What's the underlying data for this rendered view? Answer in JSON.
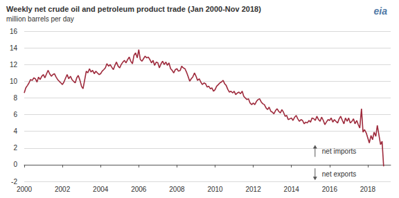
{
  "chart_data": {
    "type": "line",
    "title": "Weekly net crude oil and petroleum product trade (Jan 2000-Nov 2018)",
    "subtitle": "million barrels per day",
    "logo": "eia",
    "color": "#9e2a3c",
    "grid": true,
    "xlim": [
      2000,
      2019.2
    ],
    "xticks": [
      2000,
      2002,
      2004,
      2006,
      2008,
      2010,
      2012,
      2014,
      2016,
      2018
    ],
    "ylim": [
      -2,
      16
    ],
    "yticks": [
      -2,
      0,
      2,
      4,
      6,
      8,
      10,
      12,
      14,
      16
    ],
    "annotations": [
      {
        "text": "net imports",
        "x": 2015.6,
        "y": 1.6
      },
      {
        "text": "net exports",
        "x": 2015.6,
        "y": -1.1
      }
    ],
    "x": [
      2000.0,
      2000.08,
      2000.17,
      2000.25,
      2000.33,
      2000.42,
      2000.5,
      2000.58,
      2000.67,
      2000.75,
      2000.83,
      2000.92,
      2001.0,
      2001.08,
      2001.17,
      2001.25,
      2001.33,
      2001.42,
      2001.5,
      2001.58,
      2001.67,
      2001.75,
      2001.83,
      2001.92,
      2002.0,
      2002.08,
      2002.17,
      2002.25,
      2002.33,
      2002.42,
      2002.5,
      2002.58,
      2002.67,
      2002.75,
      2002.83,
      2002.92,
      2003.0,
      2003.08,
      2003.17,
      2003.25,
      2003.33,
      2003.42,
      2003.5,
      2003.58,
      2003.67,
      2003.75,
      2003.83,
      2003.92,
      2004.0,
      2004.08,
      2004.17,
      2004.25,
      2004.33,
      2004.42,
      2004.5,
      2004.58,
      2004.67,
      2004.75,
      2004.83,
      2004.92,
      2005.0,
      2005.08,
      2005.17,
      2005.25,
      2005.33,
      2005.42,
      2005.5,
      2005.58,
      2005.67,
      2005.75,
      2005.83,
      2005.92,
      2006.0,
      2006.08,
      2006.17,
      2006.25,
      2006.33,
      2006.42,
      2006.5,
      2006.58,
      2006.67,
      2006.75,
      2006.83,
      2006.92,
      2007.0,
      2007.08,
      2007.17,
      2007.25,
      2007.33,
      2007.42,
      2007.5,
      2007.58,
      2007.67,
      2007.75,
      2007.83,
      2007.92,
      2008.0,
      2008.08,
      2008.17,
      2008.25,
      2008.33,
      2008.42,
      2008.5,
      2008.58,
      2008.67,
      2008.75,
      2008.83,
      2008.92,
      2009.0,
      2009.08,
      2009.17,
      2009.25,
      2009.33,
      2009.42,
      2009.5,
      2009.58,
      2009.67,
      2009.75,
      2009.83,
      2009.92,
      2010.0,
      2010.08,
      2010.17,
      2010.25,
      2010.33,
      2010.42,
      2010.5,
      2010.58,
      2010.67,
      2010.75,
      2010.83,
      2010.92,
      2011.0,
      2011.08,
      2011.17,
      2011.25,
      2011.33,
      2011.42,
      2011.5,
      2011.58,
      2011.67,
      2011.75,
      2011.83,
      2011.92,
      2012.0,
      2012.08,
      2012.17,
      2012.25,
      2012.33,
      2012.42,
      2012.5,
      2012.58,
      2012.67,
      2012.75,
      2012.83,
      2012.92,
      2013.0,
      2013.08,
      2013.17,
      2013.25,
      2013.33,
      2013.42,
      2013.5,
      2013.58,
      2013.67,
      2013.75,
      2013.83,
      2013.92,
      2014.0,
      2014.08,
      2014.17,
      2014.25,
      2014.33,
      2014.42,
      2014.5,
      2014.58,
      2014.67,
      2014.75,
      2014.83,
      2014.92,
      2015.0,
      2015.08,
      2015.17,
      2015.25,
      2015.33,
      2015.42,
      2015.5,
      2015.58,
      2015.67,
      2015.75,
      2015.83,
      2015.92,
      2016.0,
      2016.08,
      2016.17,
      2016.25,
      2016.33,
      2016.42,
      2016.5,
      2016.58,
      2016.67,
      2016.75,
      2016.83,
      2016.92,
      2017.0,
      2017.08,
      2017.17,
      2017.25,
      2017.33,
      2017.42,
      2017.5,
      2017.58,
      2017.67,
      2017.75,
      2017.83,
      2017.92,
      2018.0,
      2018.08,
      2018.17,
      2018.25,
      2018.33,
      2018.42,
      2018.5,
      2018.58,
      2018.67,
      2018.75,
      2018.83
    ],
    "values": [
      8.6,
      9.2,
      9.5,
      9.8,
      10.2,
      10.1,
      10.4,
      10.3,
      9.9,
      10.5,
      10.2,
      10.6,
      10.8,
      10.4,
      10.9,
      11.3,
      10.9,
      10.6,
      10.8,
      10.9,
      10.5,
      10.2,
      10.0,
      9.8,
      9.6,
      9.9,
      10.4,
      10.8,
      10.3,
      10.6,
      10.2,
      10.0,
      9.8,
      10.4,
      10.7,
      10.1,
      9.4,
      9.1,
      10.2,
      11.2,
      11.0,
      11.5,
      11.1,
      11.3,
      10.9,
      11.2,
      11.0,
      10.8,
      10.9,
      11.2,
      11.4,
      11.6,
      12.1,
      11.8,
      12.0,
      11.7,
      11.4,
      11.9,
      12.3,
      11.8,
      11.6,
      12.0,
      12.3,
      12.5,
      12.2,
      12.6,
      12.9,
      12.4,
      12.1,
      13.1,
      13.4,
      12.8,
      13.8,
      12.6,
      12.4,
      12.7,
      13.0,
      12.8,
      12.9,
      12.6,
      12.2,
      12.5,
      11.9,
      12.3,
      12.2,
      11.6,
      12.1,
      12.4,
      12.0,
      12.3,
      11.9,
      12.2,
      11.5,
      11.3,
      11.0,
      11.4,
      11.5,
      11.2,
      11.3,
      11.8,
      11.6,
      11.5,
      11.1,
      10.6,
      10.0,
      10.3,
      10.5,
      11.0,
      10.6,
      10.1,
      10.3,
      9.9,
      9.6,
      9.8,
      9.7,
      9.3,
      9.4,
      9.1,
      9.2,
      8.8,
      9.0,
      9.4,
      9.6,
      9.8,
      9.9,
      10.1,
      9.7,
      9.5,
      9.0,
      8.7,
      8.8,
      8.6,
      8.8,
      8.4,
      8.6,
      8.7,
      8.5,
      8.8,
      8.2,
      8.0,
      7.8,
      7.9,
      7.4,
      7.2,
      7.4,
      7.2,
      7.6,
      7.8,
      7.9,
      7.5,
      7.3,
      7.2,
      6.8,
      6.6,
      6.9,
      6.4,
      6.3,
      6.1,
      6.5,
      6.7,
      6.4,
      6.2,
      6.6,
      6.3,
      5.8,
      5.9,
      5.4,
      5.5,
      5.6,
      5.3,
      5.7,
      5.9,
      5.5,
      5.2,
      5.4,
      5.3,
      4.9,
      5.1,
      5.0,
      5.3,
      5.1,
      5.6,
      5.5,
      5.3,
      5.8,
      5.4,
      5.2,
      5.7,
      5.3,
      4.8,
      5.1,
      5.4,
      5.3,
      5.6,
      5.1,
      5.4,
      5.2,
      5.0,
      5.5,
      5.8,
      5.3,
      4.9,
      5.6,
      5.2,
      5.6,
      5.0,
      5.2,
      5.5,
      4.9,
      5.3,
      4.8,
      4.4,
      6.7,
      3.9,
      4.2,
      3.8,
      3.2,
      2.6,
      3.5,
      3.0,
      3.9,
      3.4,
      4.7,
      3.6,
      2.4,
      2.8,
      -0.2
    ]
  }
}
